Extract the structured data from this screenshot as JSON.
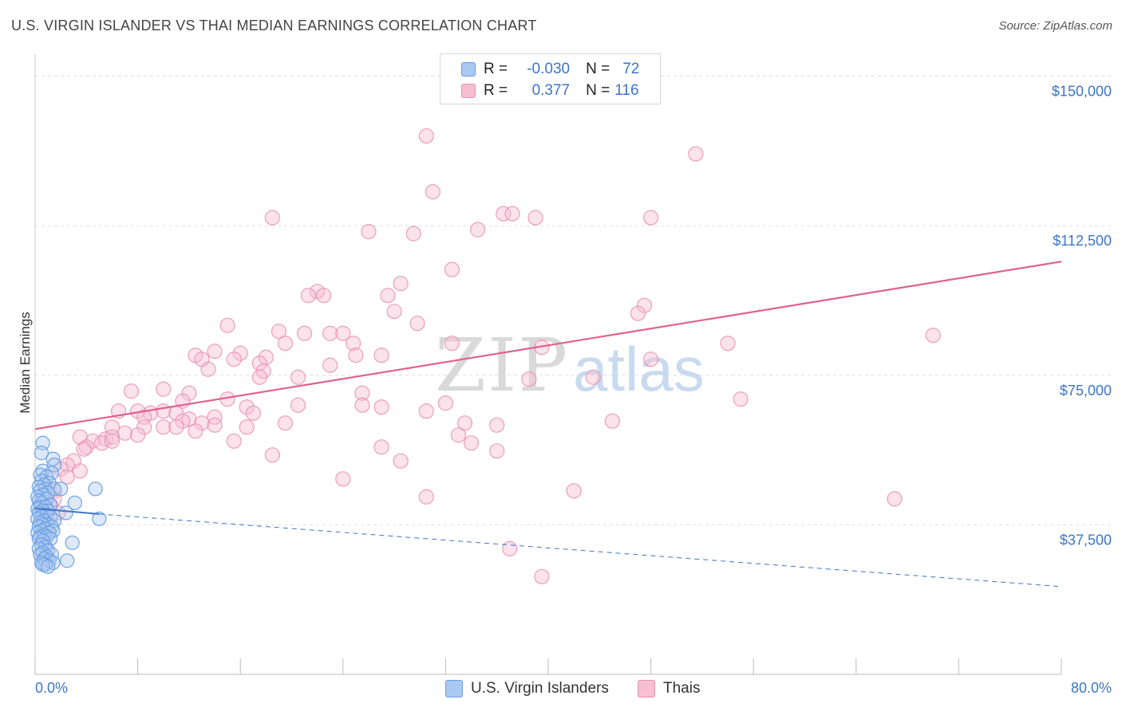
{
  "header": {
    "title": "U.S. VIRGIN ISLANDER VS THAI MEDIAN EARNINGS CORRELATION CHART",
    "source": "Source: ZipAtlas.com"
  },
  "watermark": {
    "zip": "ZIP",
    "atlas": "atlas"
  },
  "legend": {
    "rows": [
      {
        "r_label": "R =",
        "r_value": "-0.030",
        "n_label": "N =",
        "n_value": "72"
      },
      {
        "r_label": "R =",
        "r_value": "0.377",
        "n_label": "N =",
        "n_value": "116"
      }
    ]
  },
  "bottom_legend": {
    "series1": "U.S. Virgin Islanders",
    "series2": "Thais"
  },
  "colors": {
    "blue": "#6b9ee0",
    "blue_fill": "#a9c8f2",
    "blue_line": "#3d75c7",
    "pink": "#e88fb0",
    "pink_fill": "#f7bfd2",
    "pink_line": "#e0608e",
    "grid": "#dddddd",
    "axis_text": "#3d75c7"
  },
  "chart_data": {
    "type": "scatter",
    "title": "U.S. VIRGIN ISLANDER VS THAI MEDIAN EARNINGS CORRELATION CHART",
    "xlabel": "",
    "ylabel": "Median Earnings",
    "xlim": [
      0,
      80
    ],
    "ylim": [
      0,
      155000
    ],
    "x_tick_labels": [
      "0.0%",
      "80.0%"
    ],
    "y_ticks": [
      37500,
      75000,
      112500,
      150000
    ],
    "y_tick_labels": [
      "$37,500",
      "$75,000",
      "$112,500",
      "$150,000"
    ],
    "series": [
      {
        "name": "U.S. Virgin Islanders",
        "r": -0.03,
        "n": 72,
        "trend": {
          "x": [
            0,
            5.0,
            80
          ],
          "y": [
            41600,
            40200,
            22000
          ],
          "solid_until": 5.0
        },
        "points": [
          [
            0.6,
            58000
          ],
          [
            0.5,
            55500
          ],
          [
            1.4,
            54000
          ],
          [
            1.5,
            52500
          ],
          [
            0.6,
            51000
          ],
          [
            1.3,
            50500
          ],
          [
            0.4,
            50000
          ],
          [
            0.9,
            49500
          ],
          [
            0.5,
            48500
          ],
          [
            1.1,
            48000
          ],
          [
            0.7,
            47500
          ],
          [
            0.3,
            47000
          ],
          [
            0.8,
            46500
          ],
          [
            1.5,
            46500
          ],
          [
            2.0,
            46500
          ],
          [
            4.7,
            46500
          ],
          [
            0.4,
            46000
          ],
          [
            1.0,
            45500
          ],
          [
            0.6,
            45000
          ],
          [
            0.2,
            44500
          ],
          [
            0.9,
            44000
          ],
          [
            0.3,
            43500
          ],
          [
            3.1,
            43000
          ],
          [
            0.5,
            43000
          ],
          [
            1.2,
            42500
          ],
          [
            0.4,
            42000
          ],
          [
            0.8,
            42000
          ],
          [
            0.2,
            41500
          ],
          [
            1.0,
            41000
          ],
          [
            0.6,
            41000
          ],
          [
            2.4,
            40500
          ],
          [
            0.3,
            40500
          ],
          [
            0.9,
            40000
          ],
          [
            0.5,
            39500
          ],
          [
            1.2,
            39500
          ],
          [
            0.2,
            39000
          ],
          [
            5.0,
            39000
          ],
          [
            0.7,
            38500
          ],
          [
            1.5,
            38500
          ],
          [
            0.4,
            38000
          ],
          [
            1.0,
            37500
          ],
          [
            0.6,
            37500
          ],
          [
            1.3,
            37000
          ],
          [
            0.3,
            37000
          ],
          [
            0.8,
            36500
          ],
          [
            1.4,
            36000
          ],
          [
            0.5,
            36000
          ],
          [
            0.2,
            35500
          ],
          [
            1.1,
            35500
          ],
          [
            0.7,
            35000
          ],
          [
            0.4,
            34500
          ],
          [
            0.9,
            34500
          ],
          [
            0.3,
            34000
          ],
          [
            1.2,
            34000
          ],
          [
            0.6,
            33500
          ],
          [
            2.9,
            33000
          ],
          [
            0.5,
            32500
          ],
          [
            0.8,
            32000
          ],
          [
            0.3,
            31500
          ],
          [
            1.0,
            31000
          ],
          [
            0.6,
            30500
          ],
          [
            1.3,
            30000
          ],
          [
            0.4,
            30000
          ],
          [
            0.9,
            29500
          ],
          [
            0.7,
            29000
          ],
          [
            1.1,
            28500
          ],
          [
            2.5,
            28500
          ],
          [
            0.5,
            28000
          ],
          [
            1.4,
            28000
          ],
          [
            0.8,
            27500
          ],
          [
            0.6,
            27500
          ],
          [
            1.0,
            27000
          ]
        ]
      },
      {
        "name": "Thais",
        "r": 0.377,
        "n": 116,
        "trend": {
          "x": [
            0,
            80
          ],
          "y": [
            61500,
            103500
          ]
        },
        "points": [
          [
            30.5,
            135000
          ],
          [
            51.5,
            130500
          ],
          [
            31.0,
            121000
          ],
          [
            18.5,
            114500
          ],
          [
            36.5,
            115500
          ],
          [
            37.2,
            115500
          ],
          [
            39.0,
            114500
          ],
          [
            48.0,
            114500
          ],
          [
            26.0,
            111000
          ],
          [
            29.5,
            110500
          ],
          [
            34.5,
            111500
          ],
          [
            32.5,
            101500
          ],
          [
            28.5,
            98000
          ],
          [
            22.0,
            96000
          ],
          [
            21.3,
            95000
          ],
          [
            22.5,
            95000
          ],
          [
            27.5,
            95000
          ],
          [
            47.5,
            92500
          ],
          [
            28.0,
            91000
          ],
          [
            47.0,
            90500
          ],
          [
            29.8,
            88000
          ],
          [
            15.0,
            87500
          ],
          [
            19.0,
            86000
          ],
          [
            21.0,
            85500
          ],
          [
            23.0,
            85500
          ],
          [
            24.0,
            85500
          ],
          [
            70.0,
            85000
          ],
          [
            19.5,
            83000
          ],
          [
            24.8,
            83000
          ],
          [
            32.5,
            83000
          ],
          [
            39.5,
            82000
          ],
          [
            54.0,
            83000
          ],
          [
            14.0,
            81000
          ],
          [
            16.0,
            80500
          ],
          [
            12.5,
            80000
          ],
          [
            25.0,
            80000
          ],
          [
            27.0,
            80000
          ],
          [
            18.0,
            79500
          ],
          [
            13.0,
            79000
          ],
          [
            15.5,
            79000
          ],
          [
            17.5,
            78000
          ],
          [
            23.0,
            77500
          ],
          [
            48.0,
            79000
          ],
          [
            13.5,
            76500
          ],
          [
            17.8,
            76000
          ],
          [
            17.5,
            74500
          ],
          [
            20.5,
            74500
          ],
          [
            10.0,
            71500
          ],
          [
            38.5,
            74000
          ],
          [
            43.5,
            74500
          ],
          [
            7.5,
            71000
          ],
          [
            12.0,
            70500
          ],
          [
            25.5,
            70500
          ],
          [
            11.5,
            68500
          ],
          [
            15.0,
            69000
          ],
          [
            55.0,
            69000
          ],
          [
            20.5,
            67500
          ],
          [
            16.5,
            67000
          ],
          [
            25.5,
            67500
          ],
          [
            27.0,
            67000
          ],
          [
            32.0,
            68000
          ],
          [
            6.5,
            66000
          ],
          [
            8.0,
            66000
          ],
          [
            9.0,
            65500
          ],
          [
            10.0,
            66000
          ],
          [
            11.0,
            65500
          ],
          [
            12.0,
            64000
          ],
          [
            14.0,
            64500
          ],
          [
            17.0,
            65500
          ],
          [
            30.5,
            66000
          ],
          [
            8.5,
            64500
          ],
          [
            11.5,
            63500
          ],
          [
            13.0,
            63000
          ],
          [
            19.5,
            63000
          ],
          [
            33.5,
            63000
          ],
          [
            45.0,
            63500
          ],
          [
            6.0,
            62000
          ],
          [
            8.5,
            62000
          ],
          [
            10.0,
            62000
          ],
          [
            11.0,
            62000
          ],
          [
            12.5,
            61000
          ],
          [
            14.0,
            62500
          ],
          [
            16.5,
            62000
          ],
          [
            36.0,
            62500
          ],
          [
            7.0,
            60500
          ],
          [
            3.5,
            59500
          ],
          [
            5.5,
            59000
          ],
          [
            6.0,
            59500
          ],
          [
            8.0,
            60000
          ],
          [
            4.5,
            58500
          ],
          [
            5.2,
            58000
          ],
          [
            15.5,
            58500
          ],
          [
            33.0,
            60000
          ],
          [
            34.0,
            58000
          ],
          [
            6.0,
            58500
          ],
          [
            4.0,
            57000
          ],
          [
            3.8,
            56500
          ],
          [
            27.0,
            57000
          ],
          [
            36.0,
            56000
          ],
          [
            18.5,
            55000
          ],
          [
            28.5,
            53500
          ],
          [
            3.0,
            53500
          ],
          [
            2.5,
            52500
          ],
          [
            2.0,
            51500
          ],
          [
            3.5,
            51000
          ],
          [
            2.5,
            49500
          ],
          [
            24.0,
            49000
          ],
          [
            42.0,
            46000
          ],
          [
            1.5,
            46000
          ],
          [
            1.5,
            44000
          ],
          [
            30.5,
            44500
          ],
          [
            67.0,
            44000
          ],
          [
            1.2,
            42000
          ],
          [
            1.8,
            40500
          ],
          [
            37.0,
            31500
          ],
          [
            39.5,
            24500
          ]
        ]
      }
    ]
  }
}
